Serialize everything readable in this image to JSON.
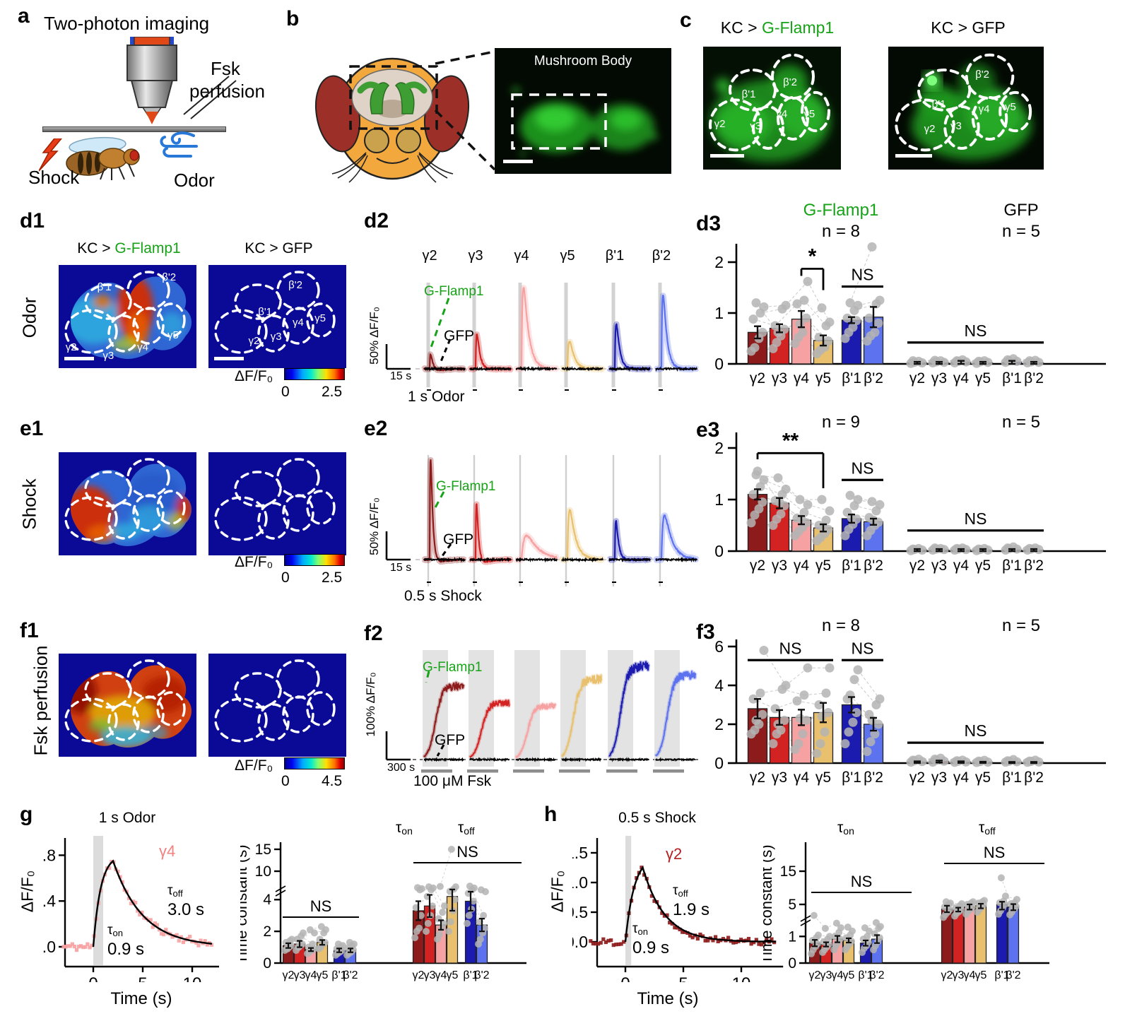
{
  "colors": {
    "sensor_green": "#17a317",
    "compartments": [
      "#8e1b1b",
      "#d32222",
      "#f7a2a2",
      "#e9c06e",
      "#1b1bb0",
      "#5d72ee"
    ],
    "dot_gray": "#b4b4b4",
    "heat_navy": "#0a0a96"
  },
  "compartments": [
    "γ2",
    "γ3",
    "γ4",
    "γ5",
    "β'1",
    "β'2"
  ],
  "panel_a": {
    "label": "a",
    "title": "Two-photon imaging",
    "fsk_line1": "Fsk",
    "fsk_line2": "perfusion",
    "shock": "Shock",
    "odor": "Odor"
  },
  "panel_b": {
    "label": "b",
    "image_title": "Mushroom Body"
  },
  "panel_c": {
    "label": "c",
    "title_left_prefix": "KC > ",
    "title_left_sensor": "G-Flamp1",
    "title_right": "KC > GFP"
  },
  "row_d": {
    "label_map": "d1",
    "label_traces": "d2",
    "label_bars": "d3",
    "row_label": "Odor",
    "map_title_left_prefix": "KC > ",
    "map_title_left_sensor": "G-Flamp1",
    "map_title_right": "KC > GFP",
    "colorbar_label": "ΔF/F₀",
    "colorbar_min": "0",
    "colorbar_max": "2.5",
    "sensor": "G-Flamp1",
    "gfp": "GFP",
    "yscale": "50% ΔF/F₀",
    "xscale": "15 s",
    "stim": "1 s Odor",
    "traces": {
      "peaks_pct": [
        40,
        72,
        165,
        55,
        90,
        150
      ],
      "under_pct": [
        38,
        8,
        0,
        0,
        0,
        0
      ],
      "rise_s": [
        0.8,
        0.8,
        0.9,
        1.2,
        0.8,
        0.8
      ],
      "decay_s": [
        2.5,
        2.0,
        3.5,
        3.0,
        2.2,
        2.5
      ]
    }
  },
  "row_e": {
    "label_map": "e1",
    "label_traces": "e2",
    "label_bars": "e3",
    "row_label": "Shock",
    "colorbar_label": "ΔF/F₀",
    "colorbar_min": "0",
    "colorbar_max": "2.5",
    "sensor": "G-Flamp1",
    "gfp": "GFP",
    "yscale": "50% ΔF/F₀",
    "xscale": "15 s",
    "stim": "0.5 s Shock",
    "traces": {
      "peaks_pct": [
        185,
        105,
        42,
        88,
        70,
        80
      ],
      "under_pct": [
        35,
        32,
        0,
        0,
        5,
        5
      ],
      "rise_s": [
        0.5,
        0.5,
        2.5,
        1.0,
        0.6,
        1.5
      ],
      "decay_s": [
        1.6,
        1.6,
        8,
        4,
        1.8,
        5
      ]
    }
  },
  "row_f": {
    "label_map": "f1",
    "label_traces": "f2",
    "label_bars": "f3",
    "row_label": "Fsk perfusion",
    "colorbar_label": "ΔF/F₀",
    "colorbar_min": "0",
    "colorbar_max": "4.5",
    "sensor": "G-Flamp1",
    "gfp": "GFP",
    "yscale": "100% ΔF/F₀",
    "xscale": "300 s",
    "stim": "100 μM Fsk",
    "traces": {
      "plateau_pct": [
        260,
        200,
        190,
        285,
        330,
        300
      ]
    }
  },
  "panel_g": {
    "label": "g"
  },
  "panel_h": {
    "label": "h"
  },
  "chart_data": [
    {
      "id": "d3-flamp",
      "type": "bar",
      "header": "G-Flamp1",
      "n_label": "n = 8",
      "ylabel": "ΔF/F₀",
      "yticks": [
        "0",
        "1",
        "2"
      ],
      "ytick_vals": [
        0,
        1,
        2
      ],
      "ylim": [
        0,
        2.4
      ],
      "categories": [
        "γ2",
        "γ3",
        "γ4",
        "γ5",
        "β'1",
        "β'2"
      ],
      "values": [
        0.62,
        0.7,
        0.88,
        0.46,
        0.86,
        0.92
      ],
      "errors": [
        0.12,
        0.08,
        0.16,
        0.1,
        0.06,
        0.2
      ],
      "points": [
        [
          0.25,
          0.32,
          0.5,
          0.62,
          0.88,
          1.0,
          1.12,
          1.2
        ],
        [
          0.3,
          0.42,
          0.55,
          0.68,
          0.75,
          1.08,
          1.15,
          0.62
        ],
        [
          0.4,
          0.52,
          0.62,
          0.9,
          1.18,
          1.25,
          1.62,
          0.78
        ],
        [
          0.2,
          0.27,
          0.33,
          0.45,
          0.52,
          0.75,
          0.82,
          1.1
        ],
        [
          0.5,
          0.62,
          0.72,
          0.85,
          0.9,
          1.05,
          1.15,
          1.2
        ],
        [
          0.45,
          0.55,
          0.62,
          0.8,
          0.9,
          1.18,
          1.25,
          2.3
        ]
      ],
      "annotations": [
        {
          "kind": "bracket",
          "a": 2,
          "b": 3,
          "y": 1.87,
          "da": 0.14,
          "db": 0.42,
          "label": "*"
        },
        {
          "kind": "nsline",
          "a": 4,
          "b": 5,
          "y": 1.52,
          "label": "NS"
        }
      ]
    },
    {
      "id": "d3-gfp",
      "type": "bar",
      "header": "GFP",
      "n_label": "n = 5",
      "categories": [
        "γ2",
        "γ3",
        "γ4",
        "γ5",
        "β'1",
        "β'2"
      ],
      "values": [
        0.02,
        0.02,
        0.03,
        0.02,
        0.03,
        0.02
      ],
      "errors": [
        0.02,
        0.02,
        0.03,
        0.02,
        0.03,
        0.02
      ],
      "points": [
        [
          0.01,
          0.03,
          0.05,
          0.02,
          0.06
        ],
        [
          0.02,
          0.04,
          0.06,
          0.03,
          0.07
        ],
        [
          0.02,
          0.05,
          0.08,
          0.04,
          0.06
        ],
        [
          0.01,
          0.04,
          0.06,
          0.03,
          0.05
        ],
        [
          0.03,
          0.06,
          0.1,
          0.05,
          0.08
        ],
        [
          0.02,
          0.04,
          0.07,
          0.03,
          0.06
        ]
      ],
      "annotations": [
        {
          "kind": "nsline",
          "a": 0,
          "b": 5,
          "y": 0.42,
          "label": "NS"
        }
      ]
    },
    {
      "id": "e3-flamp",
      "type": "bar",
      "n_label": "n = 9",
      "ylabel": "ΔF/F₀",
      "yticks": [
        "0",
        "1",
        "2"
      ],
      "ytick_vals": [
        0,
        1,
        2
      ],
      "ylim": [
        0,
        2.4
      ],
      "categories": [
        "γ2",
        "γ3",
        "γ4",
        "γ5",
        "β'1",
        "β'2"
      ],
      "values": [
        1.1,
        0.93,
        0.6,
        0.45,
        0.63,
        0.57
      ],
      "errors": [
        0.1,
        0.1,
        0.08,
        0.07,
        0.08,
        0.06
      ],
      "points": [
        [
          0.55,
          0.7,
          0.82,
          0.95,
          1.1,
          1.25,
          1.38,
          1.48,
          1.55
        ],
        [
          0.5,
          0.62,
          0.72,
          0.88,
          0.98,
          1.1,
          1.2,
          1.42,
          0.95
        ],
        [
          0.3,
          0.38,
          0.46,
          0.55,
          0.64,
          0.75,
          0.9,
          1.0,
          0.62
        ],
        [
          0.2,
          0.26,
          0.34,
          0.42,
          0.5,
          0.6,
          0.78,
          1.0,
          0.46
        ],
        [
          0.3,
          0.42,
          0.52,
          0.62,
          0.75,
          0.88,
          1.0,
          1.08,
          0.65
        ],
        [
          0.3,
          0.4,
          0.5,
          0.56,
          0.65,
          0.78,
          0.9,
          0.96,
          0.6
        ]
      ],
      "annotations": [
        {
          "kind": "bracket",
          "a": 0,
          "b": 3,
          "y": 1.9,
          "da": 0.12,
          "db": 0.68,
          "label": "**"
        },
        {
          "kind": "nsline",
          "a": 4,
          "b": 5,
          "y": 1.38,
          "label": "NS"
        }
      ]
    },
    {
      "id": "e3-gfp",
      "type": "bar",
      "n_label": "n = 5",
      "categories": [
        "γ2",
        "γ3",
        "γ4",
        "γ5",
        "β'1",
        "β'2"
      ],
      "values": [
        0.02,
        0.02,
        0.02,
        0.02,
        0.02,
        0.02
      ],
      "errors": [
        0.02,
        0.02,
        0.02,
        0.02,
        0.02,
        0.02
      ],
      "points": [
        [
          0.01,
          0.03,
          0.05,
          0.02,
          0.04
        ],
        [
          0.02,
          0.04,
          0.05,
          0.03,
          0.06
        ],
        [
          0.02,
          0.04,
          0.06,
          0.03,
          0.05
        ],
        [
          0.01,
          0.03,
          0.05,
          0.02,
          0.04
        ],
        [
          0.02,
          0.05,
          0.08,
          0.04,
          0.06
        ],
        [
          0.02,
          0.04,
          0.06,
          0.03,
          0.05
        ]
      ],
      "annotations": [
        {
          "kind": "nsline",
          "a": 0,
          "b": 5,
          "y": 0.4,
          "label": "NS"
        }
      ]
    },
    {
      "id": "f3-flamp",
      "type": "bar",
      "n_label": "n = 8",
      "ylabel": "ΔF/F₀",
      "yticks": [
        "0",
        "2",
        "4",
        "6"
      ],
      "ytick_vals": [
        0,
        2,
        4,
        6
      ],
      "ylim": [
        0,
        6.5
      ],
      "categories": [
        "γ2",
        "γ3",
        "γ4",
        "γ5",
        "β'1",
        "β'2"
      ],
      "values": [
        2.8,
        2.35,
        2.35,
        2.6,
        3.0,
        2.0
      ],
      "errors": [
        0.5,
        0.38,
        0.4,
        0.5,
        0.4,
        0.33
      ],
      "points": [
        [
          1.5,
          1.7,
          2.0,
          2.5,
          3.3,
          3.6,
          5.8,
          2.2
        ],
        [
          1.0,
          1.5,
          1.7,
          2.2,
          2.8,
          3.8,
          4.0,
          2.0
        ],
        [
          0.7,
          1.0,
          1.5,
          2.2,
          3.2,
          3.5,
          4.9,
          2.3
        ],
        [
          0.5,
          1.0,
          1.6,
          2.6,
          3.0,
          3.6,
          4.9,
          2.4
        ],
        [
          1.0,
          1.6,
          2.1,
          2.6,
          3.3,
          4.3,
          4.8,
          3.5
        ],
        [
          0.6,
          1.1,
          1.5,
          2.0,
          2.5,
          3.0,
          3.3,
          2.2
        ]
      ],
      "annotations": [
        {
          "kind": "nsline",
          "a": 0,
          "b": 3,
          "y": 5.3,
          "label": "NS"
        },
        {
          "kind": "nsline",
          "a": 4,
          "b": 5,
          "y": 5.3,
          "label": "NS"
        }
      ]
    },
    {
      "id": "f3-gfp",
      "type": "bar",
      "n_label": "n = 5",
      "categories": [
        "γ2",
        "γ3",
        "γ4",
        "γ5",
        "β'1",
        "β'2"
      ],
      "values": [
        0.05,
        0.08,
        0.05,
        0.04,
        0.03,
        0.03
      ],
      "errors": [
        0.04,
        0.05,
        0.04,
        0.03,
        0.03,
        0.03
      ],
      "points": [
        [
          0.05,
          0.12,
          0.2,
          0.08,
          0.15
        ],
        [
          0.05,
          0.15,
          0.25,
          0.1,
          0.2
        ],
        [
          0.04,
          0.1,
          0.15,
          0.06,
          0.12
        ],
        [
          0.03,
          0.08,
          0.14,
          0.05,
          0.1
        ],
        [
          0.05,
          0.1,
          0.18,
          0.07,
          0.12
        ],
        [
          0.04,
          0.09,
          0.15,
          0.06,
          0.1
        ]
      ],
      "annotations": [
        {
          "kind": "nsline",
          "a": 0,
          "b": 5,
          "y": 1.05,
          "label": "NS"
        }
      ]
    },
    {
      "id": "g-tau",
      "type": "bar",
      "ylabel": "Time constant (s)",
      "yticks": [
        "0",
        "2",
        "4",
        "10",
        "15"
      ],
      "ytick_vals": [
        0,
        2,
        4,
        10,
        15
      ],
      "group_labels": [
        {
          "sym": "τ",
          "sub": "on"
        },
        {
          "sym": "τ",
          "sub": "off"
        }
      ],
      "categories": [
        "γ2",
        "γ3",
        "γ4",
        "γ5",
        "β'1",
        "β'2"
      ],
      "on_values": [
        1.1,
        1.2,
        0.85,
        1.3,
        0.8,
        0.8
      ],
      "on_errors": [
        0.15,
        0.2,
        0.1,
        0.15,
        0.12,
        0.12
      ],
      "off_values": [
        3.3,
        3.6,
        2.4,
        4.2,
        3.9,
        2.4
      ],
      "off_errors": [
        0.6,
        0.7,
        0.3,
        0.9,
        0.6,
        0.4
      ],
      "on_points": [
        [
          0.8,
          0.9,
          1.0,
          1.1,
          1.3,
          1.4,
          1.5,
          0.9
        ],
        [
          0.8,
          1.0,
          1.1,
          1.2,
          1.5,
          1.7,
          1.9,
          1.0
        ],
        [
          0.6,
          0.7,
          0.8,
          0.9,
          1.0,
          1.2,
          1.9,
          2.1
        ],
        [
          0.9,
          1.0,
          1.2,
          1.3,
          1.5,
          1.9,
          2.1,
          2.3
        ],
        [
          0.5,
          0.6,
          0.7,
          0.8,
          0.9,
          1.0,
          1.1,
          1.2
        ],
        [
          0.5,
          0.6,
          0.7,
          0.85,
          0.95,
          1.1,
          1.2,
          1.3
        ]
      ],
      "off_points": [
        [
          1.6,
          2.0,
          2.2,
          3.0,
          3.5,
          5.0,
          5.3,
          5.6
        ],
        [
          2.0,
          2.5,
          3.0,
          3.6,
          4.2,
          5.0,
          5.5,
          5.8
        ],
        [
          1.5,
          1.8,
          2.2,
          2.5,
          2.8,
          3.2,
          3.6,
          5.9
        ],
        [
          2.0,
          2.6,
          3.3,
          4.0,
          4.6,
          5.2,
          5.8,
          15.0
        ],
        [
          2.5,
          3.0,
          3.4,
          3.9,
          4.4,
          5.0,
          5.5,
          6.0
        ],
        [
          1.2,
          1.5,
          1.9,
          2.2,
          2.6,
          3.0,
          4.5,
          5.0
        ]
      ],
      "ns_on": {
        "label": "NS"
      },
      "ns_off": {
        "label": "NS"
      }
    },
    {
      "id": "h-tau",
      "type": "bar",
      "ylabel": "Time constant (s)",
      "yticks": [
        "0",
        "1",
        "5",
        "15"
      ],
      "ytick_vals": [
        0,
        1,
        5,
        15
      ],
      "group_labels": [
        {
          "sym": "τ",
          "sub": "on"
        },
        {
          "sym": "τ",
          "sub": "off"
        }
      ],
      "categories": [
        "γ2",
        "γ3",
        "γ4",
        "γ5",
        "β'1",
        "β'2"
      ],
      "on_values": [
        0.75,
        0.7,
        0.9,
        0.85,
        0.75,
        0.9
      ],
      "on_errors": [
        0.12,
        0.08,
        0.12,
        0.08,
        0.1,
        0.15
      ],
      "off_values": [
        4.3,
        4.2,
        4.6,
        4.8,
        5.0,
        4.6
      ],
      "off_errors": [
        0.5,
        0.3,
        0.4,
        0.4,
        0.8,
        0.5
      ],
      "on_points": [
        [
          0.35,
          0.5,
          0.62,
          0.72,
          0.85,
          0.95,
          1.05,
          3.3
        ],
        [
          0.4,
          0.5,
          0.6,
          0.7,
          0.8,
          0.9,
          1.0,
          1.3
        ],
        [
          0.5,
          0.65,
          0.78,
          0.9,
          1.0,
          1.15,
          1.4,
          2.1
        ],
        [
          0.5,
          0.6,
          0.72,
          0.82,
          0.95,
          1.05,
          1.2,
          1.5
        ],
        [
          0.4,
          0.55,
          0.65,
          0.78,
          0.9,
          1.0,
          1.2,
          1.4
        ],
        [
          0.5,
          0.65,
          0.8,
          0.95,
          1.1,
          1.3,
          1.6,
          2.2
        ]
      ],
      "off_points": [
        [
          3.0,
          3.4,
          3.8,
          4.2,
          4.6,
          5.0,
          5.4,
          5.8
        ],
        [
          3.2,
          3.6,
          3.9,
          4.2,
          4.5,
          4.8,
          5.2,
          4.0
        ],
        [
          3.5,
          3.9,
          4.2,
          4.6,
          5.0,
          5.4,
          5.8,
          4.4
        ],
        [
          3.8,
          4.2,
          4.6,
          5.0,
          5.4,
          5.8,
          6.2,
          4.6
        ],
        [
          3.5,
          4.0,
          4.5,
          5.0,
          5.5,
          6.0,
          7.5,
          13.0
        ],
        [
          3.4,
          3.8,
          4.3,
          4.7,
          5.2,
          5.6,
          6.5,
          4.4
        ]
      ],
      "ns_on": {
        "label": "NS"
      },
      "ns_off": {
        "label": "NS"
      }
    },
    {
      "id": "g-line",
      "type": "line",
      "title": "1 s Odor",
      "series": "γ4",
      "series_idx": 2,
      "tau_on_sym": "τ",
      "tau_on_sub": "on",
      "tau_on_val": "0.9 s",
      "tau_off_sym": "τ",
      "tau_off_sub": "off",
      "tau_off_val": "3.0 s",
      "xlabel": "Time (s)",
      "ylabel": "ΔF/F₀",
      "xticks": [
        "0",
        "5",
        "10"
      ],
      "xtick_vals": [
        0,
        5,
        10
      ],
      "yticks": [
        "0.0",
        "0.4",
        "0.8"
      ],
      "ytick_vals": [
        0,
        0.4,
        0.8
      ],
      "peak": 0.75,
      "tau_on_s": 0.9,
      "tau_off_s": 3.0,
      "stim_dur": 1,
      "xlim": [
        -3,
        12
      ]
    },
    {
      "id": "h-line",
      "type": "line",
      "title": "0.5 s Shock",
      "series": "γ2",
      "series_idx": 0,
      "tau_on_sym": "τ",
      "tau_on_sub": "on",
      "tau_on_val": "0.9 s",
      "tau_off_sym": "τ",
      "tau_off_sub": "off",
      "tau_off_val": "1.9 s",
      "xlabel": "Time (s)",
      "ylabel": "ΔF/F₀",
      "xticks": [
        "0",
        "5",
        "10"
      ],
      "xtick_vals": [
        0,
        5,
        10
      ],
      "yticks": [
        "0.0",
        "0.5",
        "1.0",
        "1.5"
      ],
      "ytick_vals": [
        0,
        0.5,
        1.0,
        1.5
      ],
      "peak": 1.25,
      "tau_on_s": 0.9,
      "tau_off_s": 1.9,
      "stim_dur": 0.5,
      "xlim": [
        -3,
        13
      ]
    }
  ]
}
